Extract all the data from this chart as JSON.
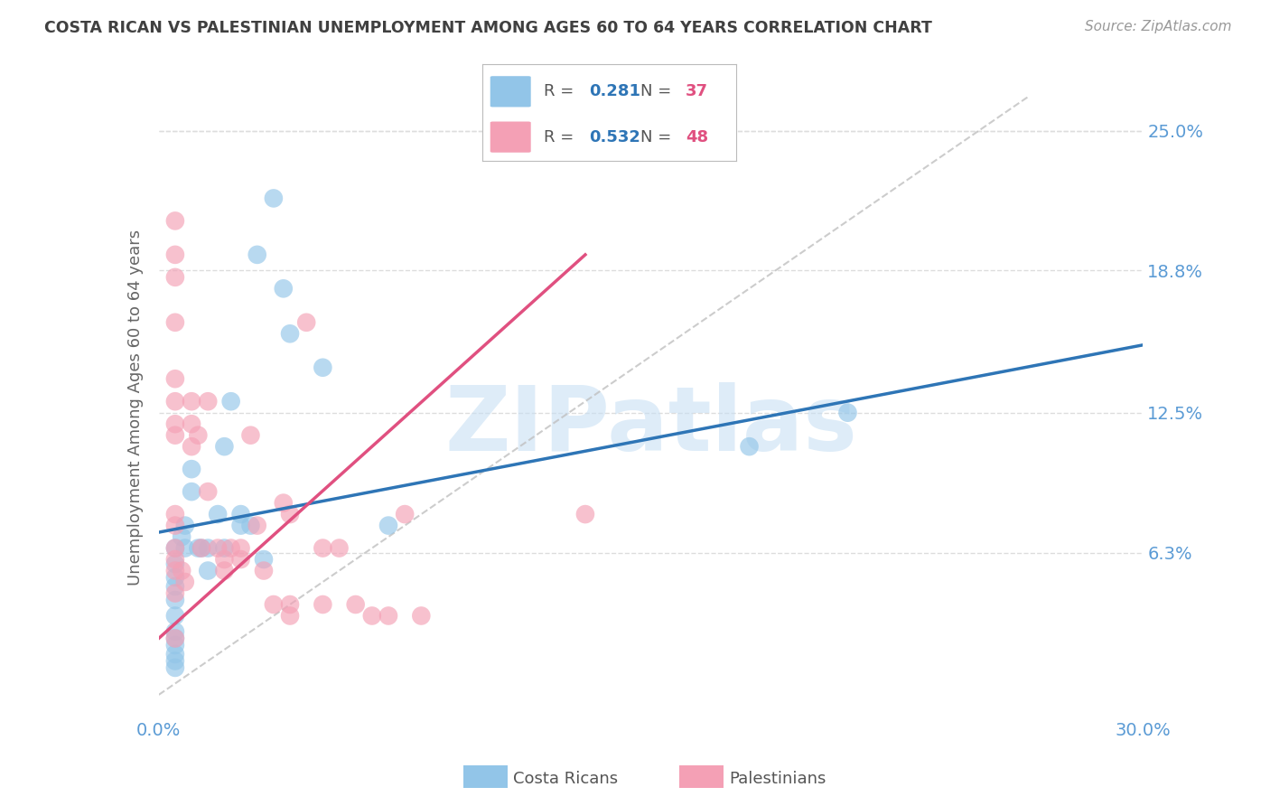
{
  "title": "COSTA RICAN VS PALESTINIAN UNEMPLOYMENT AMONG AGES 60 TO 64 YEARS CORRELATION CHART",
  "source": "Source: ZipAtlas.com",
  "ylabel": "Unemployment Among Ages 60 to 64 years",
  "xlim": [
    0.0,
    0.3
  ],
  "ylim": [
    -0.01,
    0.265
  ],
  "ytick_positions": [
    0.063,
    0.125,
    0.188,
    0.25
  ],
  "ytick_labels": [
    "6.3%",
    "12.5%",
    "18.8%",
    "25.0%"
  ],
  "costa_rican_color": "#92C5E8",
  "palestinian_color": "#F4A0B5",
  "trend_blue": "#2E75B6",
  "trend_pink": "#E05080",
  "diag_color": "#C0C0C0",
  "R_cr": 0.281,
  "N_cr": 37,
  "R_pal": 0.532,
  "N_pal": 48,
  "legend_label_cr": "Costa Ricans",
  "legend_label_pal": "Palestinians",
  "background_color": "#FFFFFF",
  "grid_color": "#DDDDDD",
  "axis_label_color": "#5B9BD5",
  "title_color": "#404040",
  "watermark_text": "ZIPatlas",
  "watermark_color": "#C8E0F4",
  "costa_rican_x": [
    0.005,
    0.005,
    0.005,
    0.005,
    0.005,
    0.005,
    0.007,
    0.008,
    0.008,
    0.01,
    0.01,
    0.012,
    0.013,
    0.015,
    0.015,
    0.018,
    0.02,
    0.02,
    0.022,
    0.025,
    0.025,
    0.028,
    0.03,
    0.032,
    0.035,
    0.038,
    0.04,
    0.05,
    0.07,
    0.18,
    0.21,
    0.005,
    0.005,
    0.005,
    0.005,
    0.005,
    0.005
  ],
  "costa_rican_y": [
    0.065,
    0.058,
    0.052,
    0.048,
    0.042,
    0.035,
    0.07,
    0.075,
    0.065,
    0.09,
    0.1,
    0.065,
    0.065,
    0.065,
    0.055,
    0.08,
    0.11,
    0.065,
    0.13,
    0.08,
    0.075,
    0.075,
    0.195,
    0.06,
    0.22,
    0.18,
    0.16,
    0.145,
    0.075,
    0.11,
    0.125,
    0.028,
    0.022,
    0.018,
    0.015,
    0.012,
    0.025
  ],
  "palestinian_x": [
    0.005,
    0.005,
    0.005,
    0.005,
    0.005,
    0.005,
    0.005,
    0.005,
    0.005,
    0.005,
    0.005,
    0.005,
    0.005,
    0.005,
    0.005,
    0.007,
    0.008,
    0.01,
    0.01,
    0.01,
    0.012,
    0.013,
    0.015,
    0.015,
    0.018,
    0.02,
    0.02,
    0.022,
    0.025,
    0.025,
    0.028,
    0.03,
    0.032,
    0.035,
    0.038,
    0.04,
    0.04,
    0.04,
    0.045,
    0.05,
    0.05,
    0.055,
    0.06,
    0.065,
    0.07,
    0.075,
    0.08,
    0.13
  ],
  "palestinian_y": [
    0.21,
    0.195,
    0.185,
    0.165,
    0.14,
    0.13,
    0.12,
    0.115,
    0.08,
    0.075,
    0.065,
    0.06,
    0.055,
    0.045,
    0.025,
    0.055,
    0.05,
    0.13,
    0.12,
    0.11,
    0.115,
    0.065,
    0.13,
    0.09,
    0.065,
    0.06,
    0.055,
    0.065,
    0.065,
    0.06,
    0.115,
    0.075,
    0.055,
    0.04,
    0.085,
    0.08,
    0.04,
    0.035,
    0.165,
    0.065,
    0.04,
    0.065,
    0.04,
    0.035,
    0.035,
    0.08,
    0.035,
    0.08
  ],
  "trend_cr_x0": 0.0,
  "trend_cr_y0": 0.072,
  "trend_cr_x1": 0.3,
  "trend_cr_y1": 0.155,
  "trend_pal_x0": 0.0,
  "trend_pal_y0": 0.025,
  "trend_pal_x1": 0.13,
  "trend_pal_y1": 0.195
}
